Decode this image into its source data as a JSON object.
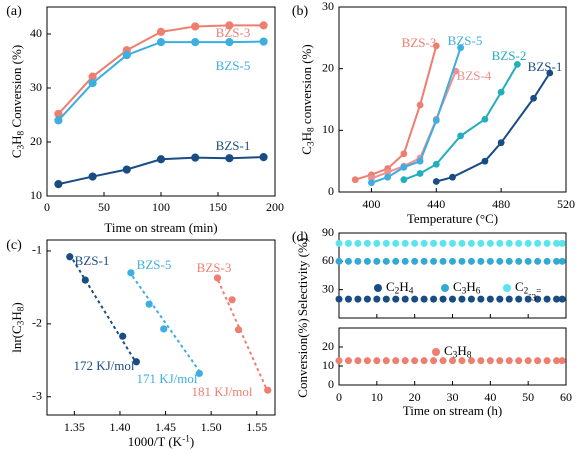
{
  "colors": {
    "BZS-1": "#1a4c84",
    "BZS-2": "#21aebd",
    "BZS-3": "#ee7e6f",
    "BZS-4": "#ed8f93",
    "BZS-5": "#3daee0",
    "C2H4": "#1a4c84",
    "C3H6": "#35a9d6",
    "C2-3=": "#59e4ee",
    "C3H8": "#ee7e6f"
  },
  "chart_data": [
    {
      "panel": "(a)",
      "type": "line",
      "xlabel": "Time on stream (min)",
      "ylabel": "C3H8 Conversion (%)",
      "xlim": [
        0,
        200
      ],
      "ylim": [
        10,
        45
      ],
      "xticks": [
        0,
        50,
        100,
        150,
        200
      ],
      "yticks": [
        10,
        20,
        30,
        40
      ],
      "series": [
        {
          "name": "BZS-3",
          "x": [
            10,
            40,
            70,
            100,
            130,
            160,
            190
          ],
          "y": [
            25.2,
            32.1,
            37.0,
            40.4,
            41.4,
            41.6,
            41.6
          ]
        },
        {
          "name": "BZS-5",
          "x": [
            10,
            40,
            70,
            100,
            130,
            160,
            190
          ],
          "y": [
            24.0,
            30.9,
            36.1,
            38.5,
            38.5,
            38.5,
            38.6
          ]
        },
        {
          "name": "BZS-1",
          "x": [
            10,
            40,
            70,
            100,
            130,
            160,
            190
          ],
          "y": [
            12.2,
            13.6,
            14.9,
            16.8,
            17.1,
            17.0,
            17.2
          ]
        }
      ],
      "labels": [
        "BZS-3",
        "BZS-5",
        "BZS-1"
      ]
    },
    {
      "panel": "(b)",
      "type": "line",
      "xlabel": "Temperature (°C)",
      "ylabel": "C3H8 conversion (%)",
      "xlim": [
        380,
        520
      ],
      "ylim": [
        0,
        30
      ],
      "xticks": [
        400,
        440,
        480,
        520
      ],
      "yticks": [
        0,
        10,
        20,
        30
      ],
      "series": [
        {
          "name": "BZS-3",
          "x": [
            390,
            400,
            410,
            420,
            430,
            440
          ],
          "y": [
            2.0,
            2.8,
            3.8,
            6.2,
            14.1,
            23.7
          ]
        },
        {
          "name": "BZS-4",
          "x": [
            400,
            410,
            420,
            430,
            440,
            452
          ],
          "y": [
            2.2,
            3.2,
            4.2,
            5.5,
            11.8,
            19.6
          ]
        },
        {
          "name": "BZS-5",
          "x": [
            400,
            410,
            420,
            430,
            440,
            455
          ],
          "y": [
            1.5,
            2.4,
            4.0,
            5.0,
            11.6,
            23.4
          ]
        },
        {
          "name": "BZS-2",
          "x": [
            420,
            430,
            440,
            455,
            470,
            480,
            490
          ],
          "y": [
            2.0,
            3.0,
            4.5,
            9.1,
            11.8,
            16.2,
            20.7
          ]
        },
        {
          "name": "BZS-1",
          "x": [
            440,
            450,
            470,
            480,
            500,
            510
          ],
          "y": [
            1.7,
            2.4,
            5.0,
            8.0,
            15.2,
            19.3
          ]
        }
      ],
      "labels": [
        "BZS-3",
        "BZS-5",
        "BZS-4",
        "BZS-2",
        "BZS-1"
      ]
    },
    {
      "panel": "(c)",
      "type": "scatter",
      "xlabel": "1000/T (K-1)",
      "ylabel": "lnr(C3H8)",
      "xlim": [
        1.32,
        1.57
      ],
      "ylim": [
        -3.25,
        -0.85
      ],
      "xticks": [
        1.35,
        1.4,
        1.45,
        1.5,
        1.55
      ],
      "yticks": [
        -1,
        -2,
        -3
      ],
      "series": [
        {
          "name": "BZS-1",
          "x": [
            1.345,
            1.362,
            1.403,
            1.418
          ],
          "y": [
            -1.08,
            -1.4,
            -2.17,
            -2.52
          ],
          "fit": [
            [
              1.345,
              -1.05
            ],
            [
              1.42,
              -2.58
            ]
          ],
          "energy": "172 KJ/mol"
        },
        {
          "name": "BZS-5",
          "x": [
            1.412,
            1.432,
            1.448,
            1.487
          ],
          "y": [
            -1.3,
            -1.73,
            -2.07,
            -2.68
          ],
          "fit": [
            [
              1.41,
              -1.28
            ],
            [
              1.49,
              -2.7
            ]
          ],
          "energy": "171 KJ/mol"
        },
        {
          "name": "BZS-3",
          "x": [
            1.507,
            1.523,
            1.53,
            1.562
          ],
          "y": [
            -1.37,
            -1.67,
            -2.08,
            -2.91
          ],
          "fit": [
            [
              1.505,
              -1.33
            ],
            [
              1.562,
              -2.93
            ]
          ],
          "energy": "181 KJ/mol"
        }
      ]
    },
    {
      "panel": "(d)",
      "type": "scatter",
      "xlabel": "Time on stream (h)",
      "ylabel": "Conversion(%) Selectivity (%)",
      "xlim": [
        0,
        60
      ],
      "xticks": [
        0,
        10,
        20,
        30,
        40,
        50,
        60
      ],
      "top": {
        "ylim": [
          0,
          90
        ],
        "yticks": [
          30,
          60,
          90
        ],
        "series": [
          {
            "name": "C2H4",
            "value": 20
          },
          {
            "name": "C3H6",
            "value": 60
          },
          {
            "name": "C2-3=",
            "value": 79
          }
        ]
      },
      "bottom": {
        "ylim": [
          0,
          30
        ],
        "yticks": [
          0,
          10,
          20
        ],
        "series": [
          {
            "name": "C3H8",
            "value": 12.8
          }
        ]
      },
      "x_points": [
        0,
        2.5,
        5,
        7.5,
        10,
        12.5,
        15,
        17.5,
        20,
        22.5,
        25,
        27.5,
        30,
        32.5,
        35,
        37.5,
        40,
        42.5,
        45,
        47.5,
        50,
        52.5,
        55,
        57.5,
        59
      ]
    }
  ]
}
